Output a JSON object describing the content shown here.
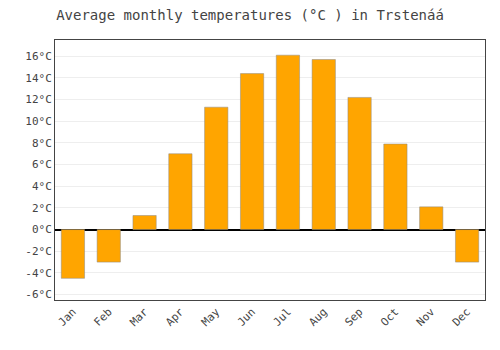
{
  "chart_data": {
    "type": "bar",
    "title": "Average monthly temperatures (°C ) in Trstenáá",
    "categories": [
      "Jan",
      "Feb",
      "Mar",
      "Apr",
      "May",
      "Jun",
      "Jul",
      "Aug",
      "Sep",
      "Oct",
      "Nov",
      "Dec"
    ],
    "values": [
      -4.5,
      -3.0,
      1.3,
      7.0,
      11.3,
      14.4,
      16.1,
      15.7,
      12.2,
      7.9,
      2.1,
      -3.0
    ],
    "color": "#FFA500",
    "ylim": [
      -6.5,
      17.5
    ],
    "yticks": [
      {
        "value": -6,
        "label": "-6°C"
      },
      {
        "value": -4,
        "label": "-4°C"
      },
      {
        "value": -2,
        "label": "-2°C"
      },
      {
        "value": 0,
        "label": "0°C"
      },
      {
        "value": 2,
        "label": "2°C"
      },
      {
        "value": 4,
        "label": "4°C"
      },
      {
        "value": 6,
        "label": "6°C"
      },
      {
        "value": 8,
        "label": "8°C"
      },
      {
        "value": 10,
        "label": "10°C"
      },
      {
        "value": 12,
        "label": "12°C"
      },
      {
        "value": 14,
        "label": "14°C"
      },
      {
        "value": 16,
        "label": "16°C"
      }
    ],
    "grid": true
  }
}
